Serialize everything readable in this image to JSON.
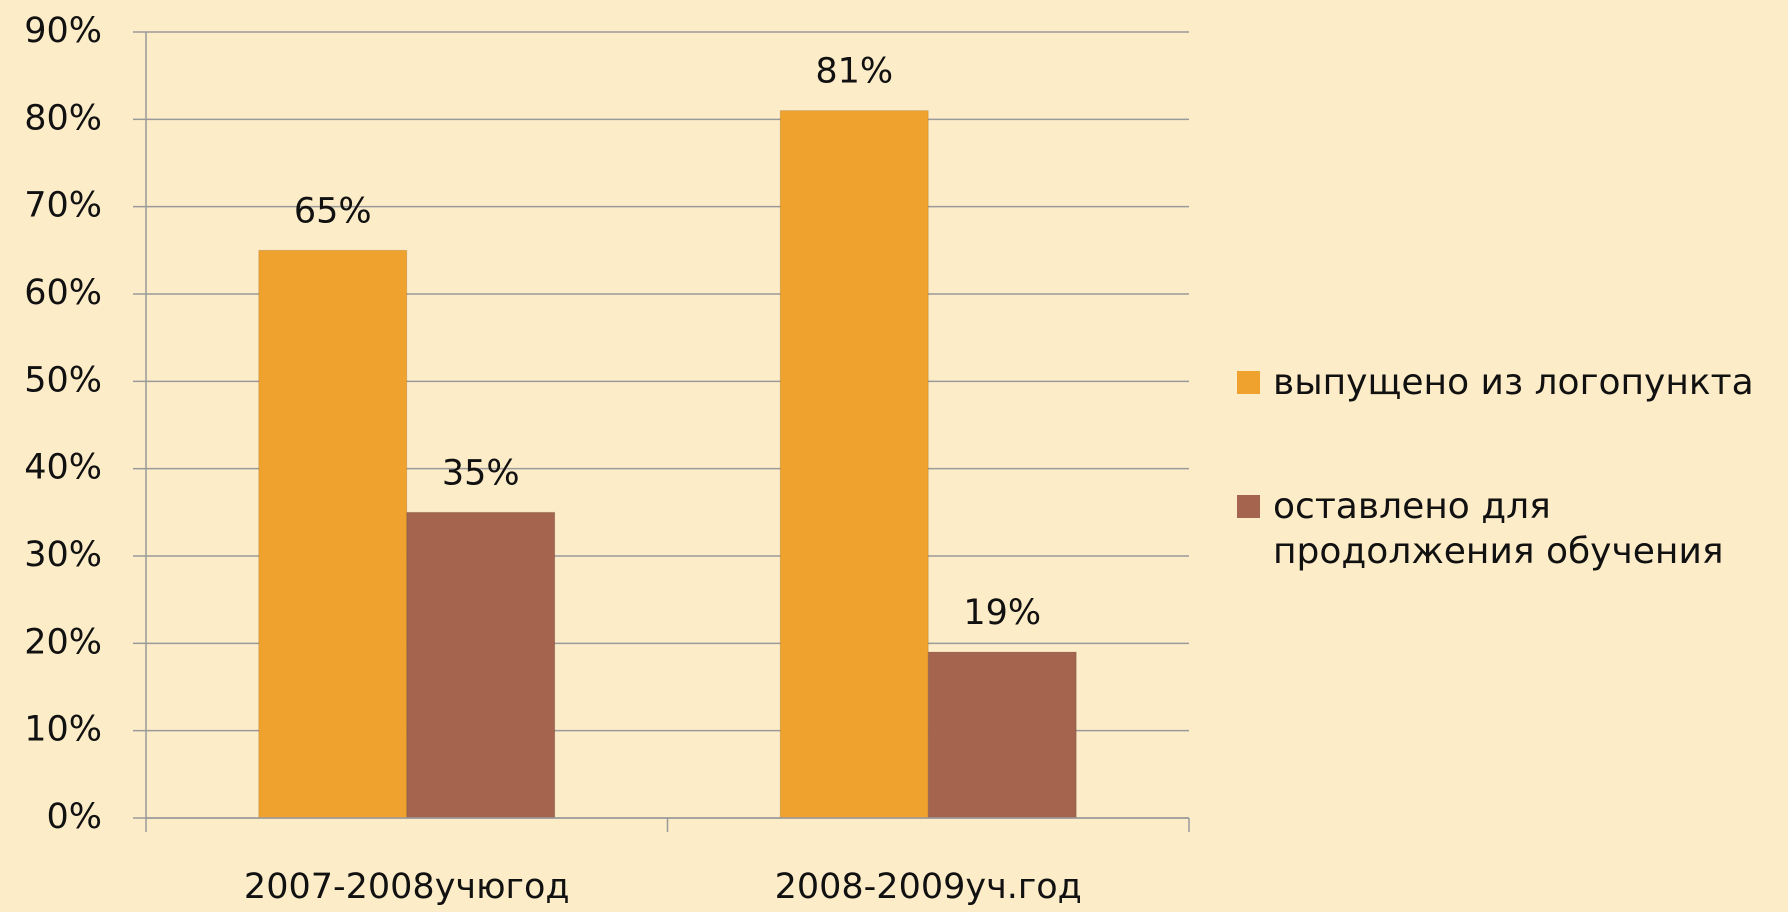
{
  "chart_data": {
    "type": "bar",
    "categories": [
      "2007-2008учюгод",
      "2008-2009уч.год"
    ],
    "series": [
      {
        "name": "выпущено из логопункта",
        "color": "#f0a22e",
        "values": [
          65,
          81
        ],
        "value_labels": [
          "65%",
          "81%"
        ]
      },
      {
        "name": "оставлено для продолжения обучения",
        "color": "#a5644e",
        "values": [
          35,
          19
        ],
        "value_labels": [
          "35%",
          "19%"
        ]
      }
    ],
    "ylim": [
      0,
      90
    ],
    "yticks": [
      {
        "value": 0,
        "label": "0%"
      },
      {
        "value": 10,
        "label": "10%"
      },
      {
        "value": 20,
        "label": "20%"
      },
      {
        "value": 30,
        "label": "30%"
      },
      {
        "value": 40,
        "label": "40%"
      },
      {
        "value": 50,
        "label": "50%"
      },
      {
        "value": 60,
        "label": "60%"
      },
      {
        "value": 70,
        "label": "70%"
      },
      {
        "value": 80,
        "label": "80%"
      },
      {
        "value": 90,
        "label": "90%"
      }
    ],
    "grid": true,
    "legend": "right"
  }
}
